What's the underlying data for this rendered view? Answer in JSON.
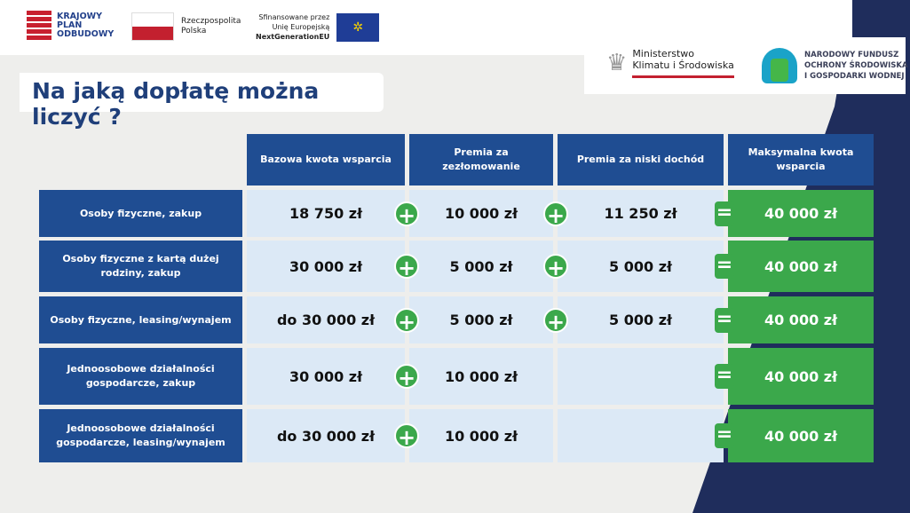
{
  "logos": {
    "kpo": "KRAJOWY PLAN ODBUDOWY",
    "rp": "Rzeczpospolita Polska",
    "eu_line1": "Sfinansowane przez",
    "eu_line2": "Unię Europejską",
    "eu_line3": "NextGenerationEU",
    "ministry_line1": "Ministerstwo",
    "ministry_line2": "Klimatu i Środowiska",
    "nfos_line1": "NARODOWY FUNDUSZ",
    "nfos_line2": "OCHRONY ŚRODOWISKA",
    "nfos_line3": "I GOSPODARKI WODNEJ"
  },
  "title": "Na jaką dopłatę można liczyć ?",
  "headers": [
    "Bazowa kwota wsparcia",
    "Premia za zezłomowanie",
    "Premia za niski dochód",
    "Maksymalna kwota wsparcia"
  ],
  "rows": [
    {
      "label": "Osoby fizyczne, zakup",
      "base": "18 750 zł",
      "scrap": "10 000 zł",
      "income": "11 250 zł",
      "max": "40 000 zł"
    },
    {
      "label": "Osoby fizyczne z kartą dużej rodziny, zakup",
      "base": "30 000 zł",
      "scrap": "5 000 zł",
      "income": "5 000 zł",
      "max": "40 000 zł"
    },
    {
      "label": "Osoby fizyczne, leasing/wynajem",
      "base": "do 30 000 zł",
      "scrap": "5 000 zł",
      "income": "5 000 zł",
      "max": "40 000 zł"
    },
    {
      "label": "Jednoosobowe działalności gospodarcze, zakup",
      "base": "30 000 zł",
      "scrap": "10 000 zł",
      "income": "",
      "max": "40 000 zł"
    },
    {
      "label": "Jednoosobowe działalności gospodarcze, leasing/wynajem",
      "base": "do 30 000 zł",
      "scrap": "10 000 zł",
      "income": "",
      "max": "40 000 zł"
    }
  ],
  "symbols": {
    "plus": "+",
    "equals": "="
  },
  "colors": {
    "navy": "#1f4d92",
    "green": "#3ba84b",
    "light_blue": "#dce9f6"
  }
}
